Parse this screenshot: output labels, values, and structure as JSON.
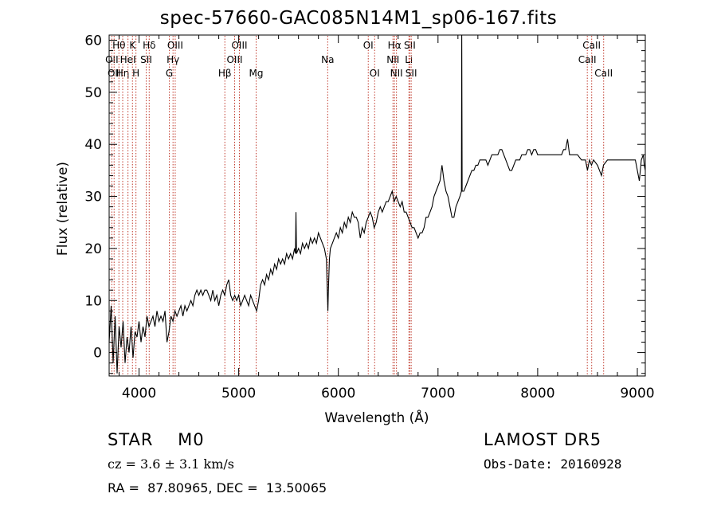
{
  "chart_data": {
    "type": "line",
    "title": "spec-57660-GAC085N14M1_sp06-167.fits",
    "xlabel": "Wavelength (Å)",
    "ylabel": "Flux (relative)",
    "xlim": [
      3700,
      9080
    ],
    "ylim": [
      -4.5,
      61
    ],
    "x_ticks": [
      4000,
      5000,
      6000,
      7000,
      8000,
      9000
    ],
    "y_ticks": [
      0,
      10,
      20,
      30,
      40,
      50,
      60
    ],
    "grid": false,
    "line_color": "#000000",
    "marker_color": "#c0392b",
    "series": [
      {
        "values": [
          [
            3700,
            2
          ],
          [
            3720,
            9
          ],
          [
            3740,
            -2
          ],
          [
            3760,
            7
          ],
          [
            3780,
            -4
          ],
          [
            3800,
            5
          ],
          [
            3820,
            1
          ],
          [
            3840,
            6
          ],
          [
            3860,
            -2
          ],
          [
            3880,
            3
          ],
          [
            3900,
            0
          ],
          [
            3920,
            5
          ],
          [
            3940,
            -1
          ],
          [
            3960,
            4
          ],
          [
            3980,
            3
          ],
          [
            4000,
            6
          ],
          [
            4020,
            2
          ],
          [
            4040,
            5
          ],
          [
            4060,
            3
          ],
          [
            4080,
            7
          ],
          [
            4100,
            5
          ],
          [
            4120,
            6
          ],
          [
            4140,
            7
          ],
          [
            4160,
            5
          ],
          [
            4180,
            8
          ],
          [
            4200,
            6
          ],
          [
            4220,
            7
          ],
          [
            4240,
            6
          ],
          [
            4260,
            8
          ],
          [
            4280,
            2
          ],
          [
            4300,
            4
          ],
          [
            4320,
            7
          ],
          [
            4340,
            6
          ],
          [
            4360,
            8
          ],
          [
            4380,
            7
          ],
          [
            4400,
            8
          ],
          [
            4420,
            9
          ],
          [
            4440,
            7
          ],
          [
            4460,
            9
          ],
          [
            4480,
            8
          ],
          [
            4500,
            9
          ],
          [
            4520,
            10
          ],
          [
            4540,
            9
          ],
          [
            4560,
            11
          ],
          [
            4580,
            12
          ],
          [
            4600,
            11
          ],
          [
            4620,
            12
          ],
          [
            4640,
            11
          ],
          [
            4660,
            12
          ],
          [
            4680,
            12
          ],
          [
            4700,
            11
          ],
          [
            4720,
            10
          ],
          [
            4740,
            12
          ],
          [
            4760,
            10
          ],
          [
            4780,
            11
          ],
          [
            4800,
            9
          ],
          [
            4820,
            11
          ],
          [
            4840,
            12
          ],
          [
            4860,
            11
          ],
          [
            4880,
            13
          ],
          [
            4900,
            14
          ],
          [
            4920,
            11
          ],
          [
            4940,
            10
          ],
          [
            4960,
            11
          ],
          [
            4980,
            10
          ],
          [
            5000,
            11
          ],
          [
            5020,
            9
          ],
          [
            5040,
            10
          ],
          [
            5060,
            11
          ],
          [
            5080,
            10
          ],
          [
            5100,
            9
          ],
          [
            5120,
            11
          ],
          [
            5140,
            10
          ],
          [
            5160,
            9
          ],
          [
            5180,
            8
          ],
          [
            5200,
            10
          ],
          [
            5220,
            13
          ],
          [
            5240,
            14
          ],
          [
            5260,
            13
          ],
          [
            5280,
            15
          ],
          [
            5300,
            14
          ],
          [
            5320,
            16
          ],
          [
            5340,
            15
          ],
          [
            5360,
            17
          ],
          [
            5380,
            16
          ],
          [
            5400,
            18
          ],
          [
            5420,
            17
          ],
          [
            5440,
            18
          ],
          [
            5460,
            17
          ],
          [
            5480,
            19
          ],
          [
            5500,
            18
          ],
          [
            5520,
            19
          ],
          [
            5540,
            18
          ],
          [
            5560,
            20
          ],
          [
            5570,
            19
          ],
          [
            5575,
            27
          ],
          [
            5580,
            19
          ],
          [
            5600,
            20
          ],
          [
            5620,
            19
          ],
          [
            5640,
            21
          ],
          [
            5660,
            20
          ],
          [
            5680,
            21
          ],
          [
            5700,
            20
          ],
          [
            5720,
            22
          ],
          [
            5740,
            21
          ],
          [
            5760,
            22
          ],
          [
            5780,
            21
          ],
          [
            5800,
            23
          ],
          [
            5820,
            22
          ],
          [
            5840,
            21
          ],
          [
            5860,
            20
          ],
          [
            5880,
            18
          ],
          [
            5890,
            11
          ],
          [
            5895,
            8
          ],
          [
            5900,
            12
          ],
          [
            5910,
            18
          ],
          [
            5920,
            20
          ],
          [
            5940,
            21
          ],
          [
            5960,
            22
          ],
          [
            5980,
            23
          ],
          [
            6000,
            22
          ],
          [
            6020,
            24
          ],
          [
            6040,
            23
          ],
          [
            6060,
            25
          ],
          [
            6080,
            24
          ],
          [
            6100,
            26
          ],
          [
            6120,
            25
          ],
          [
            6140,
            27
          ],
          [
            6160,
            26
          ],
          [
            6180,
            26
          ],
          [
            6200,
            25
          ],
          [
            6220,
            22
          ],
          [
            6240,
            24
          ],
          [
            6260,
            23
          ],
          [
            6280,
            25
          ],
          [
            6300,
            26
          ],
          [
            6320,
            27
          ],
          [
            6340,
            26
          ],
          [
            6360,
            24
          ],
          [
            6380,
            25
          ],
          [
            6400,
            27
          ],
          [
            6420,
            28
          ],
          [
            6440,
            27
          ],
          [
            6460,
            28
          ],
          [
            6480,
            29
          ],
          [
            6500,
            29
          ],
          [
            6520,
            30
          ],
          [
            6540,
            31
          ],
          [
            6560,
            29
          ],
          [
            6580,
            30
          ],
          [
            6600,
            29
          ],
          [
            6620,
            28
          ],
          [
            6640,
            29
          ],
          [
            6660,
            27
          ],
          [
            6680,
            27
          ],
          [
            6700,
            26
          ],
          [
            6720,
            25
          ],
          [
            6740,
            24
          ],
          [
            6760,
            24
          ],
          [
            6780,
            23
          ],
          [
            6800,
            22
          ],
          [
            6820,
            23
          ],
          [
            6840,
            23
          ],
          [
            6860,
            24
          ],
          [
            6880,
            26
          ],
          [
            6900,
            26
          ],
          [
            6920,
            27
          ],
          [
            6940,
            28
          ],
          [
            6960,
            30
          ],
          [
            6980,
            31
          ],
          [
            7000,
            32
          ],
          [
            7020,
            33
          ],
          [
            7040,
            36
          ],
          [
            7060,
            33
          ],
          [
            7080,
            31
          ],
          [
            7100,
            30
          ],
          [
            7120,
            28
          ],
          [
            7140,
            26
          ],
          [
            7160,
            26
          ],
          [
            7180,
            28
          ],
          [
            7200,
            29
          ],
          [
            7220,
            30
          ],
          [
            7235,
            31
          ],
          [
            7238,
            61
          ],
          [
            7242,
            31
          ],
          [
            7260,
            31
          ],
          [
            7280,
            32
          ],
          [
            7300,
            33
          ],
          [
            7320,
            34
          ],
          [
            7340,
            35
          ],
          [
            7360,
            35
          ],
          [
            7380,
            36
          ],
          [
            7400,
            36
          ],
          [
            7420,
            37
          ],
          [
            7440,
            37
          ],
          [
            7460,
            37
          ],
          [
            7480,
            37
          ],
          [
            7500,
            36
          ],
          [
            7520,
            37
          ],
          [
            7540,
            38
          ],
          [
            7560,
            38
          ],
          [
            7580,
            38
          ],
          [
            7600,
            38
          ],
          [
            7620,
            39
          ],
          [
            7640,
            39
          ],
          [
            7660,
            38
          ],
          [
            7680,
            37
          ],
          [
            7700,
            36
          ],
          [
            7720,
            35
          ],
          [
            7740,
            35
          ],
          [
            7760,
            36
          ],
          [
            7780,
            37
          ],
          [
            7800,
            37
          ],
          [
            7820,
            37
          ],
          [
            7840,
            38
          ],
          [
            7860,
            38
          ],
          [
            7880,
            38
          ],
          [
            7900,
            39
          ],
          [
            7920,
            39
          ],
          [
            7940,
            38
          ],
          [
            7960,
            39
          ],
          [
            7980,
            39
          ],
          [
            8000,
            38
          ],
          [
            8040,
            38
          ],
          [
            8080,
            38
          ],
          [
            8120,
            38
          ],
          [
            8160,
            38
          ],
          [
            8200,
            38
          ],
          [
            8240,
            38
          ],
          [
            8260,
            39
          ],
          [
            8280,
            39
          ],
          [
            8300,
            41
          ],
          [
            8320,
            38
          ],
          [
            8360,
            38
          ],
          [
            8400,
            38
          ],
          [
            8440,
            37
          ],
          [
            8480,
            37
          ],
          [
            8500,
            35
          ],
          [
            8520,
            37
          ],
          [
            8540,
            36
          ],
          [
            8560,
            37
          ],
          [
            8600,
            36
          ],
          [
            8640,
            34
          ],
          [
            8660,
            36
          ],
          [
            8700,
            37
          ],
          [
            8740,
            37
          ],
          [
            8780,
            37
          ],
          [
            8820,
            37
          ],
          [
            8860,
            37
          ],
          [
            8900,
            37
          ],
          [
            8940,
            37
          ],
          [
            8980,
            37
          ],
          [
            9000,
            35
          ],
          [
            9020,
            33
          ],
          [
            9040,
            37
          ],
          [
            9060,
            38
          ],
          [
            9070,
            36
          ],
          [
            9080,
            35
          ]
        ]
      }
    ],
    "line_markers": [
      {
        "wave": 3727,
        "label": "OII",
        "row": 1
      },
      {
        "wave": 3750,
        "label": "OII",
        "row": 2
      },
      {
        "wave": 3798,
        "label": "Hθ",
        "row": 0
      },
      {
        "wave": 3836,
        "label": "Hη",
        "row": 2
      },
      {
        "wave": 3889,
        "label": "HeI",
        "row": 1
      },
      {
        "wave": 3934,
        "label": "K",
        "row": 0
      },
      {
        "wave": 3969,
        "label": "H",
        "row": 2
      },
      {
        "wave": 4072,
        "label": "SII",
        "row": 1
      },
      {
        "wave": 4102,
        "label": "Hδ",
        "row": 0
      },
      {
        "wave": 4304,
        "label": "G",
        "row": 2
      },
      {
        "wave": 4341,
        "label": "Hγ",
        "row": 1
      },
      {
        "wave": 4363,
        "label": "OIII",
        "row": 0
      },
      {
        "wave": 4861,
        "label": "Hβ",
        "row": 2
      },
      {
        "wave": 4959,
        "label": "OIII",
        "row": 1
      },
      {
        "wave": 5007,
        "label": "OIII",
        "row": 0
      },
      {
        "wave": 5175,
        "label": "Mg",
        "row": 2
      },
      {
        "wave": 5893,
        "label": "Na",
        "row": 1
      },
      {
        "wave": 6300,
        "label": "OI",
        "row": 0
      },
      {
        "wave": 6364,
        "label": "OI",
        "row": 2
      },
      {
        "wave": 6548,
        "label": "NII",
        "row": 1
      },
      {
        "wave": 6563,
        "label": "Hα",
        "row": 0
      },
      {
        "wave": 6583,
        "label": "NII",
        "row": 2
      },
      {
        "wave": 6708,
        "label": "Li",
        "row": 1
      },
      {
        "wave": 6717,
        "label": "SII",
        "row": 0
      },
      {
        "wave": 6731,
        "label": "SII",
        "row": 2
      },
      {
        "wave": 8498,
        "label": "CaII",
        "row": 1
      },
      {
        "wave": 8542,
        "label": "CaII",
        "row": 0
      },
      {
        "wave": 8662,
        "label": "CaII",
        "row": 2
      }
    ]
  },
  "info": {
    "object_class": "STAR    M0",
    "survey": "LAMOST DR5",
    "cz": "cz = 3.6 ± 3.1 km/s",
    "obs_date": "Obs-Date: 20160928",
    "radec": "RA =  87.80965, DEC =  13.50065"
  }
}
